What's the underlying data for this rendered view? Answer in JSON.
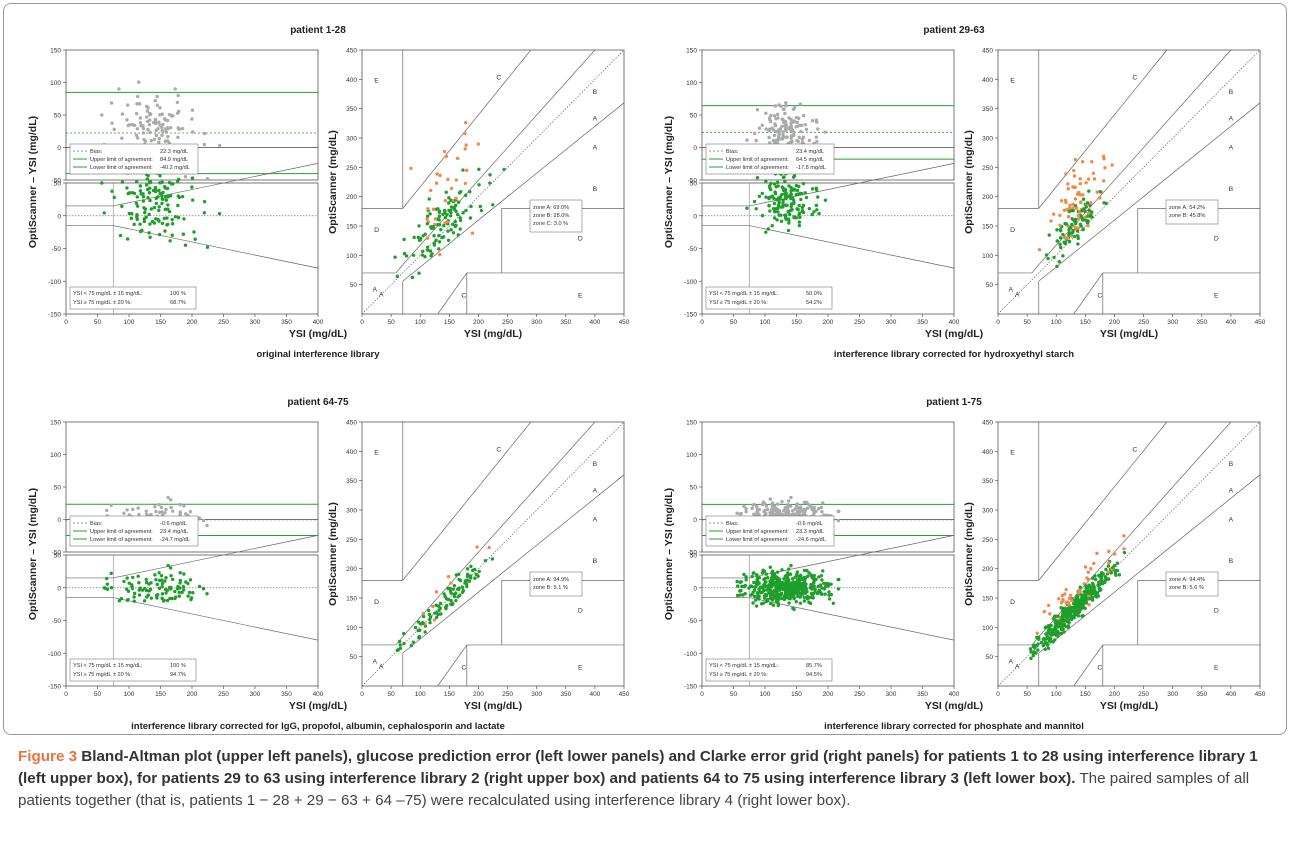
{
  "figure": {
    "caption_label": "Figure 3",
    "caption_bold": " Bland-Altman plot (upper left panels), glucose prediction error (left lower panels) and Clarke error grid (right panels) for patients 1 to 28 using interference library 1 (left upper box), for patients 29 to 63 using interference library 2 (right upper box) and patients 64 to 75 using interference library 3 (left lower box).",
    "caption_rest": " The paired samples of all patients together (that is, patients 1 − 28 + 29 − 63 + 64 –75) were recalculated using interference library 4 (right lower box).",
    "colors": {
      "gray": "#aaaaaa",
      "green": "#1e9e2a",
      "orange": "#f08a4b",
      "line": "#777777",
      "limit": "#22a030"
    }
  },
  "chart_data": [
    {
      "type": "scatter",
      "panel": "patient 1-28",
      "title": "patient 1-28",
      "subtitle": "original interference library",
      "ylabel": "OptiScanner – YSI (mg/dL)",
      "ba_ylabel": "OptiScanner – YSI (mg/dL)",
      "xlabel": "YSI (mg/dL)",
      "clarke_ylabel": "OptiScanner (mg/dL)",
      "clarke_xlabel": "YSI (mg/dL)",
      "ba_ylim": [
        -50,
        150
      ],
      "pe_ylim": [
        -150,
        50
      ],
      "ba_xlim": [
        0,
        400
      ],
      "clarke_lim": [
        0,
        450
      ],
      "ba_yticks": [
        "150",
        "100",
        "50",
        "0",
        "-50"
      ],
      "pe_yticks": [
        "50",
        "0",
        "-50",
        "-100",
        "-150"
      ],
      "ba_xticks": [
        "0",
        "50",
        "100",
        "150",
        "200",
        "250",
        "300",
        "350",
        "400"
      ],
      "clarke_ticks": [
        "0",
        "50",
        "100",
        "150",
        "200",
        "250",
        "300",
        "350",
        "400",
        "450"
      ],
      "bias": 22.3,
      "upper_limit": 84.9,
      "lower_limit": -40.2,
      "bias_label": "Bias:",
      "bias_text": "22.3 mg/dL",
      "upper_label": "Upper limit of agreement:",
      "upper_text": "84.9 mg/dL",
      "lower_label": "Lower limit of agreement:",
      "lower_text": "-40.2 mg/dL",
      "pe_line1": "YSI < 75 mg/dL ± 15 mg/dL:",
      "pe_val1": "100 %",
      "pe_line2": "YSI ≥ 75 mg/dL ± 20 %:",
      "pe_val2": "68.7%",
      "zones": [
        "zone A:  69.0%",
        "zone B:  28.0%",
        "zone C:   3.0 %"
      ],
      "zone_letters": [
        "A",
        "A",
        "B",
        "B",
        "C",
        "C",
        "D",
        "D",
        "E",
        "E"
      ],
      "n": 140,
      "seed": 11,
      "cx": 140,
      "sx": 32,
      "mean": 22,
      "sd": 30,
      "orange": 0.3
    },
    {
      "type": "scatter",
      "panel": "patient 29-63",
      "title": "patient 29-63",
      "subtitle": "interference library corrected for hydroxyethyl starch",
      "ylabel": "OptiScanner – YSI (mg/dL)",
      "ba_ylabel": "OptiScanner – YSI (mg/dL)",
      "xlabel": "YSI (mg/dL)",
      "clarke_ylabel": "OptiScanner (mg/dL)",
      "clarke_xlabel": "YSI (mg/dL)",
      "ba_ylim": [
        -50,
        150
      ],
      "pe_ylim": [
        -150,
        50
      ],
      "ba_xlim": [
        0,
        400
      ],
      "clarke_lim": [
        0,
        450
      ],
      "ba_yticks": [
        "150",
        "100",
        "50",
        "0",
        "-50"
      ],
      "pe_yticks": [
        "50",
        "0",
        "-50",
        "-100",
        "-150"
      ],
      "ba_xticks": [
        "0",
        "50",
        "100",
        "150",
        "200",
        "250",
        "300",
        "350",
        "400"
      ],
      "clarke_ticks": [
        "0",
        "50",
        "100",
        "150",
        "200",
        "250",
        "300",
        "350",
        "400",
        "450"
      ],
      "bias": 23.4,
      "upper_limit": 64.5,
      "lower_limit": -17.8,
      "bias_label": "Bias:",
      "bias_text": "23.4 mg/dL",
      "upper_label": "Upper limit of agreement:",
      "upper_text": "64.5 mg/dL",
      "lower_label": "Lower limit of agreement:",
      "lower_text": "-17.8 mg/dL",
      "pe_line1": "YSI < 75 mg/dL ± 15 mg/dL:",
      "pe_val1": "50.0%",
      "pe_line2": "YSI ≥ 75 mg/dL ± 20 %:",
      "pe_val2": "54.2%",
      "zones": [
        "zone A:  54.2%",
        "zone B:  45.8%"
      ],
      "zone_letters": [
        "A",
        "A",
        "B",
        "B",
        "C",
        "C",
        "D",
        "D",
        "E",
        "E"
      ],
      "n": 150,
      "seed": 23,
      "cx": 135,
      "sx": 22,
      "mean": 23,
      "sd": 20,
      "orange": 0.45
    },
    {
      "type": "scatter",
      "panel": "patient 64-75",
      "title": "patient 64-75",
      "subtitle": "interference library corrected for IgG, propofol, albumin, cephalosporin and lactate",
      "ylabel": "OptiScanner – YSI (mg/dL)",
      "ba_ylabel": "OptiScanner – YSI (mg/dL)",
      "xlabel": "YSI (mg/dL)",
      "clarke_ylabel": "OptiScanner (mg/dL)",
      "clarke_xlabel": "YSI (mg/dL)",
      "ba_ylim": [
        -50,
        150
      ],
      "pe_ylim": [
        -150,
        50
      ],
      "ba_xlim": [
        0,
        400
      ],
      "clarke_lim": [
        0,
        450
      ],
      "ba_yticks": [
        "150",
        "100",
        "50",
        "0",
        "-50"
      ],
      "pe_yticks": [
        "50",
        "0",
        "-50",
        "-100",
        "-150"
      ],
      "ba_xticks": [
        "0",
        "50",
        "100",
        "150",
        "200",
        "250",
        "300",
        "350",
        "400"
      ],
      "clarke_ticks": [
        "0",
        "50",
        "100",
        "150",
        "200",
        "250",
        "300",
        "350",
        "400",
        "450"
      ],
      "bias": -0.6,
      "upper_limit": 23.4,
      "lower_limit": -24.7,
      "bias_label": "Bias:",
      "bias_text": "-0.6  mg/dL",
      "upper_label": "Upper limit of agreement:",
      "upper_text": "23.4 mg/dL",
      "lower_label": "Lower limit of agreement:",
      "lower_text": "-24.7 mg/dL",
      "pe_line1": "YSI < 75 mg/dL ± 15 mg/dL:",
      "pe_val1": "100 %",
      "pe_line2": "YSI ≥ 75 mg/dL ± 20 %:",
      "pe_val2": "94.7%",
      "zones": [
        "zone A:  94.9%",
        "zone B:    5.1 %"
      ],
      "zone_letters": [
        "A",
        "A",
        "B",
        "B",
        "C",
        "C",
        "D",
        "D",
        "E",
        "E"
      ],
      "n": 100,
      "seed": 37,
      "cx": 140,
      "sx": 38,
      "mean": 0,
      "sd": 12,
      "orange": 0.08
    },
    {
      "type": "scatter",
      "panel": "patient 1-75",
      "title": "patient 1-75",
      "subtitle": "interference library corrected for phosphate and mannitol",
      "ylabel": "OptiScanner – YSI (mg/dL)",
      "ba_ylabel": "OptiScanner – YSI (mg/dL)",
      "xlabel": "YSI (mg/dL)",
      "clarke_ylabel": "OptiScanner (mg/dL)",
      "clarke_xlabel": "YSI (mg/dL)",
      "ba_ylim": [
        -50,
        150
      ],
      "pe_ylim": [
        -150,
        50
      ],
      "ba_xlim": [
        0,
        400
      ],
      "clarke_lim": [
        0,
        450
      ],
      "ba_yticks": [
        "150",
        "100",
        "50",
        "0",
        "-50"
      ],
      "pe_yticks": [
        "50",
        "0",
        "-50",
        "-100",
        "-150"
      ],
      "ba_xticks": [
        "0",
        "50",
        "100",
        "150",
        "200",
        "250",
        "300",
        "350",
        "400"
      ],
      "clarke_ticks": [
        "0",
        "50",
        "100",
        "150",
        "200",
        "250",
        "300",
        "350",
        "400",
        "450"
      ],
      "bias": -0.6,
      "upper_limit": 23.3,
      "lower_limit": -24.6,
      "bias_label": "Bias:",
      "bias_text": "-0.6  mg/dL",
      "upper_label": "Upper limit of agreement:",
      "upper_text": "23.3 mg/dL",
      "lower_label": "Lower limit of agreement:",
      "lower_text": "-24.6 mg/dL",
      "pe_line1": "YSI < 75 mg/dL ± 15 mg/dL:",
      "pe_val1": "85.7%",
      "pe_line2": "YSI ≥ 75 mg/dL ± 20 %:",
      "pe_val2": "94.5%",
      "zones": [
        "zone A:  94.4%",
        "zone B:    5.6  %"
      ],
      "zone_letters": [
        "A",
        "A",
        "B",
        "B",
        "C",
        "C",
        "D",
        "D",
        "E",
        "E"
      ],
      "n": 420,
      "seed": 51,
      "cx": 130,
      "sx": 32,
      "mean": 0,
      "sd": 12,
      "orange": 0.12
    }
  ]
}
